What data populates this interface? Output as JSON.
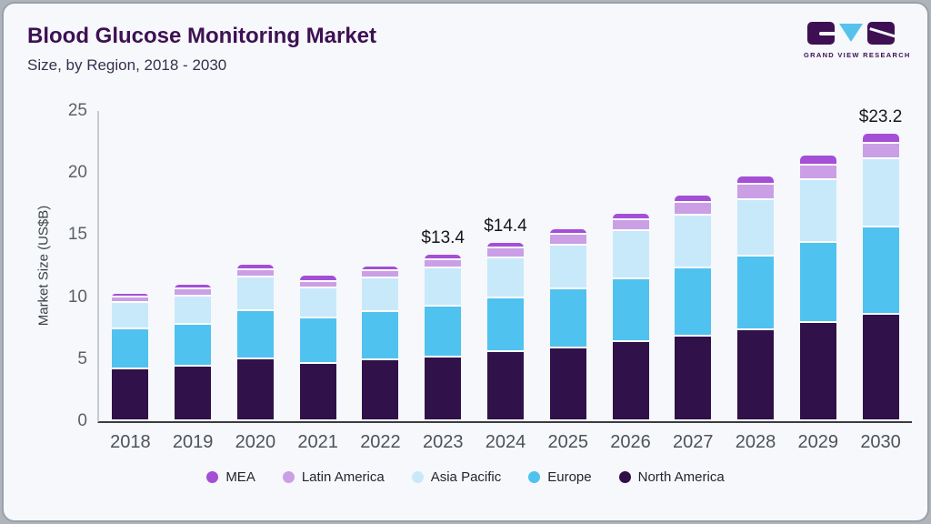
{
  "header": {
    "title": "Blood Glucose Monitoring Market",
    "subtitle": "Size, by Region, 2018 - 2030"
  },
  "logo": {
    "text": "GRAND VIEW RESEARCH",
    "brand_purple": "#3e1053",
    "brand_blue": "#56c2ec"
  },
  "colors": {
    "card_background": "#f6f8fb",
    "axis_dark": "#3a3d40",
    "axis_light": "#c5cbd0"
  },
  "chart_data": {
    "type": "bar",
    "stacked": true,
    "title": "Blood Glucose Monitoring Market Size, by Region, 2018 - 2030",
    "xlabel": "",
    "ylabel": "Market Size (US$B)",
    "ylim": [
      0,
      25
    ],
    "yticks": [
      0,
      5,
      10,
      15,
      20,
      25
    ],
    "grid": false,
    "legend_position": "bottom",
    "categories": [
      "2018",
      "2019",
      "2020",
      "2021",
      "2022",
      "2023",
      "2024",
      "2025",
      "2026",
      "2027",
      "2028",
      "2029",
      "2030"
    ],
    "series": [
      {
        "name": "North America",
        "color": "#311149",
        "values": [
          4.2,
          4.4,
          4.95,
          4.6,
          4.9,
          5.15,
          5.55,
          5.9,
          6.35,
          6.85,
          7.35,
          7.9,
          8.55
        ]
      },
      {
        "name": "Europe",
        "color": "#50c2ef",
        "values": [
          3.2,
          3.35,
          3.9,
          3.65,
          3.9,
          4.1,
          4.35,
          4.7,
          5.1,
          5.5,
          5.9,
          6.45,
          7.05
        ]
      },
      {
        "name": "Asia Pacific",
        "color": "#c8e9fa",
        "values": [
          2.1,
          2.3,
          2.7,
          2.45,
          2.7,
          3.05,
          3.25,
          3.55,
          3.9,
          4.25,
          4.6,
          5.1,
          5.55
        ]
      },
      {
        "name": "Latin America",
        "color": "#cb9fe6",
        "values": [
          0.5,
          0.6,
          0.65,
          0.55,
          0.6,
          0.65,
          0.8,
          0.9,
          0.85,
          1.0,
          1.2,
          1.15,
          1.25
        ]
      },
      {
        "name": "MEA",
        "color": "#a44fd6",
        "values": [
          0.3,
          0.35,
          0.45,
          0.45,
          0.4,
          0.45,
          0.45,
          0.45,
          0.5,
          0.6,
          0.65,
          0.8,
          0.8
        ]
      }
    ],
    "totals": [
      10.3,
      11.0,
      12.65,
      11.7,
      12.5,
      13.4,
      14.4,
      15.5,
      16.7,
      18.2,
      19.7,
      21.4,
      23.2
    ],
    "annotations": {
      "2023": "$13.4",
      "2024": "$14.4",
      "2030": "$23.2"
    },
    "legend_order": [
      "MEA",
      "Latin America",
      "Asia Pacific",
      "Europe",
      "North America"
    ]
  }
}
